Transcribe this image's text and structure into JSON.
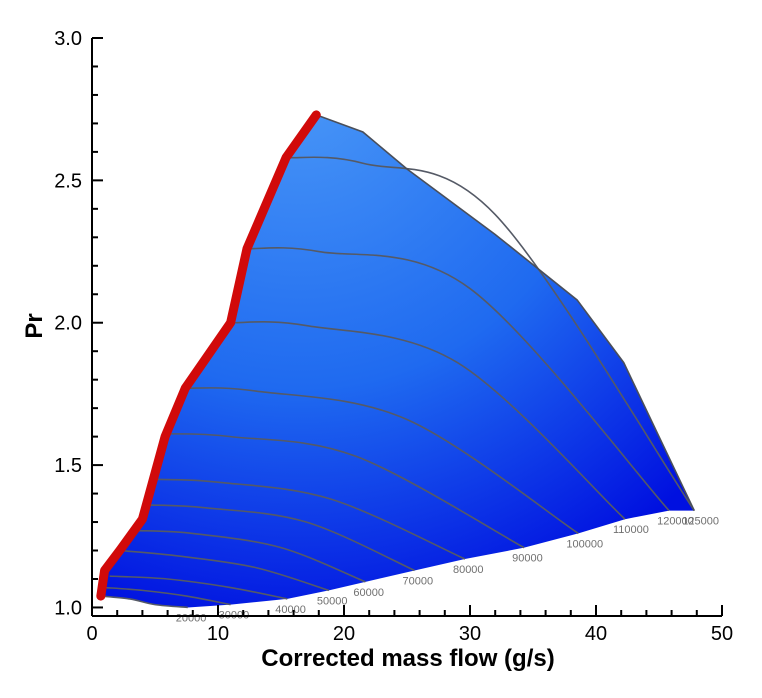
{
  "chart_data": {
    "type": "line",
    "title": "",
    "xlabel": "Corrected mass flow (g/s)",
    "ylabel": "Pr",
    "xlim": [
      0,
      50
    ],
    "ylim": [
      0.97,
      3.0
    ],
    "x_ticks": [
      0,
      10,
      20,
      30,
      40,
      50
    ],
    "x_tick_labels": [
      "0",
      "10",
      "20",
      "30",
      "40",
      "50"
    ],
    "y_ticks": [
      1.0,
      1.5,
      2.0,
      2.5,
      3.0
    ],
    "y_tick_labels": [
      "1.0",
      "1.5",
      "2.0",
      "2.5",
      "3.0"
    ],
    "grid": false,
    "colors": {
      "map_fill_light": "#3d8ef5",
      "map_fill_dark": "#0018e8",
      "surge_line": "#d10a0a",
      "speed_lines": "#555a66"
    },
    "surge_line": {
      "x": [
        0.7,
        1.0,
        2.2,
        4.0,
        5.8,
        7.4,
        11.0,
        12.3,
        15.4,
        17.8
      ],
      "y": [
        1.04,
        1.13,
        1.2,
        1.31,
        1.6,
        1.77,
        2.0,
        2.26,
        2.58,
        2.73
      ]
    },
    "choke_boundary": {
      "x": [
        17.8,
        21.5,
        25.0,
        32.0,
        38.5,
        42.2,
        47.8
      ],
      "y": [
        2.73,
        2.67,
        2.54,
        2.31,
        2.08,
        1.86,
        1.34
      ]
    },
    "series": [
      {
        "name": "20000",
        "x": [
          0.7,
          3.0,
          5.0,
          7.6
        ],
        "y": [
          1.04,
          1.03,
          1.01,
          1.0
        ]
      },
      {
        "name": "30000",
        "x": [
          1.0,
          4.0,
          7.5,
          11.0
        ],
        "y": [
          1.07,
          1.06,
          1.04,
          1.01
        ]
      },
      {
        "name": "40000",
        "x": [
          1.4,
          6.0,
          11.0,
          15.5
        ],
        "y": [
          1.11,
          1.1,
          1.07,
          1.03
        ]
      },
      {
        "name": "50000",
        "x": [
          2.2,
          7.0,
          13.0,
          18.8
        ],
        "y": [
          1.2,
          1.18,
          1.14,
          1.06
        ]
      },
      {
        "name": "60000",
        "x": [
          3.5,
          8.0,
          15.0,
          21.7
        ],
        "y": [
          1.27,
          1.26,
          1.21,
          1.09
        ]
      },
      {
        "name": "70000",
        "x": [
          4.4,
          9.0,
          17.0,
          25.6
        ],
        "y": [
          1.36,
          1.35,
          1.3,
          1.13
        ]
      },
      {
        "name": "80000",
        "x": [
          5.1,
          10.0,
          19.0,
          29.6
        ],
        "y": [
          1.45,
          1.44,
          1.38,
          1.17
        ]
      },
      {
        "name": "90000",
        "x": [
          5.8,
          11.0,
          21.0,
          34.3
        ],
        "y": [
          1.61,
          1.6,
          1.53,
          1.21
        ]
      },
      {
        "name": "100000",
        "x": [
          7.3,
          13.0,
          25.0,
          38.6
        ],
        "y": [
          1.77,
          1.76,
          1.66,
          1.26
        ]
      },
      {
        "name": "110000",
        "x": [
          11.0,
          17.0,
          29.0,
          42.3
        ],
        "y": [
          2.0,
          1.99,
          1.86,
          1.31
        ]
      },
      {
        "name": "120000",
        "x": [
          12.3,
          18.0,
          30.0,
          45.8
        ],
        "y": [
          2.26,
          2.25,
          2.12,
          1.34
        ]
      },
      {
        "name": "125000",
        "x": [
          15.4,
          21.5,
          32.0,
          47.8
        ],
        "y": [
          2.58,
          2.56,
          2.38,
          1.34
        ]
      }
    ]
  }
}
